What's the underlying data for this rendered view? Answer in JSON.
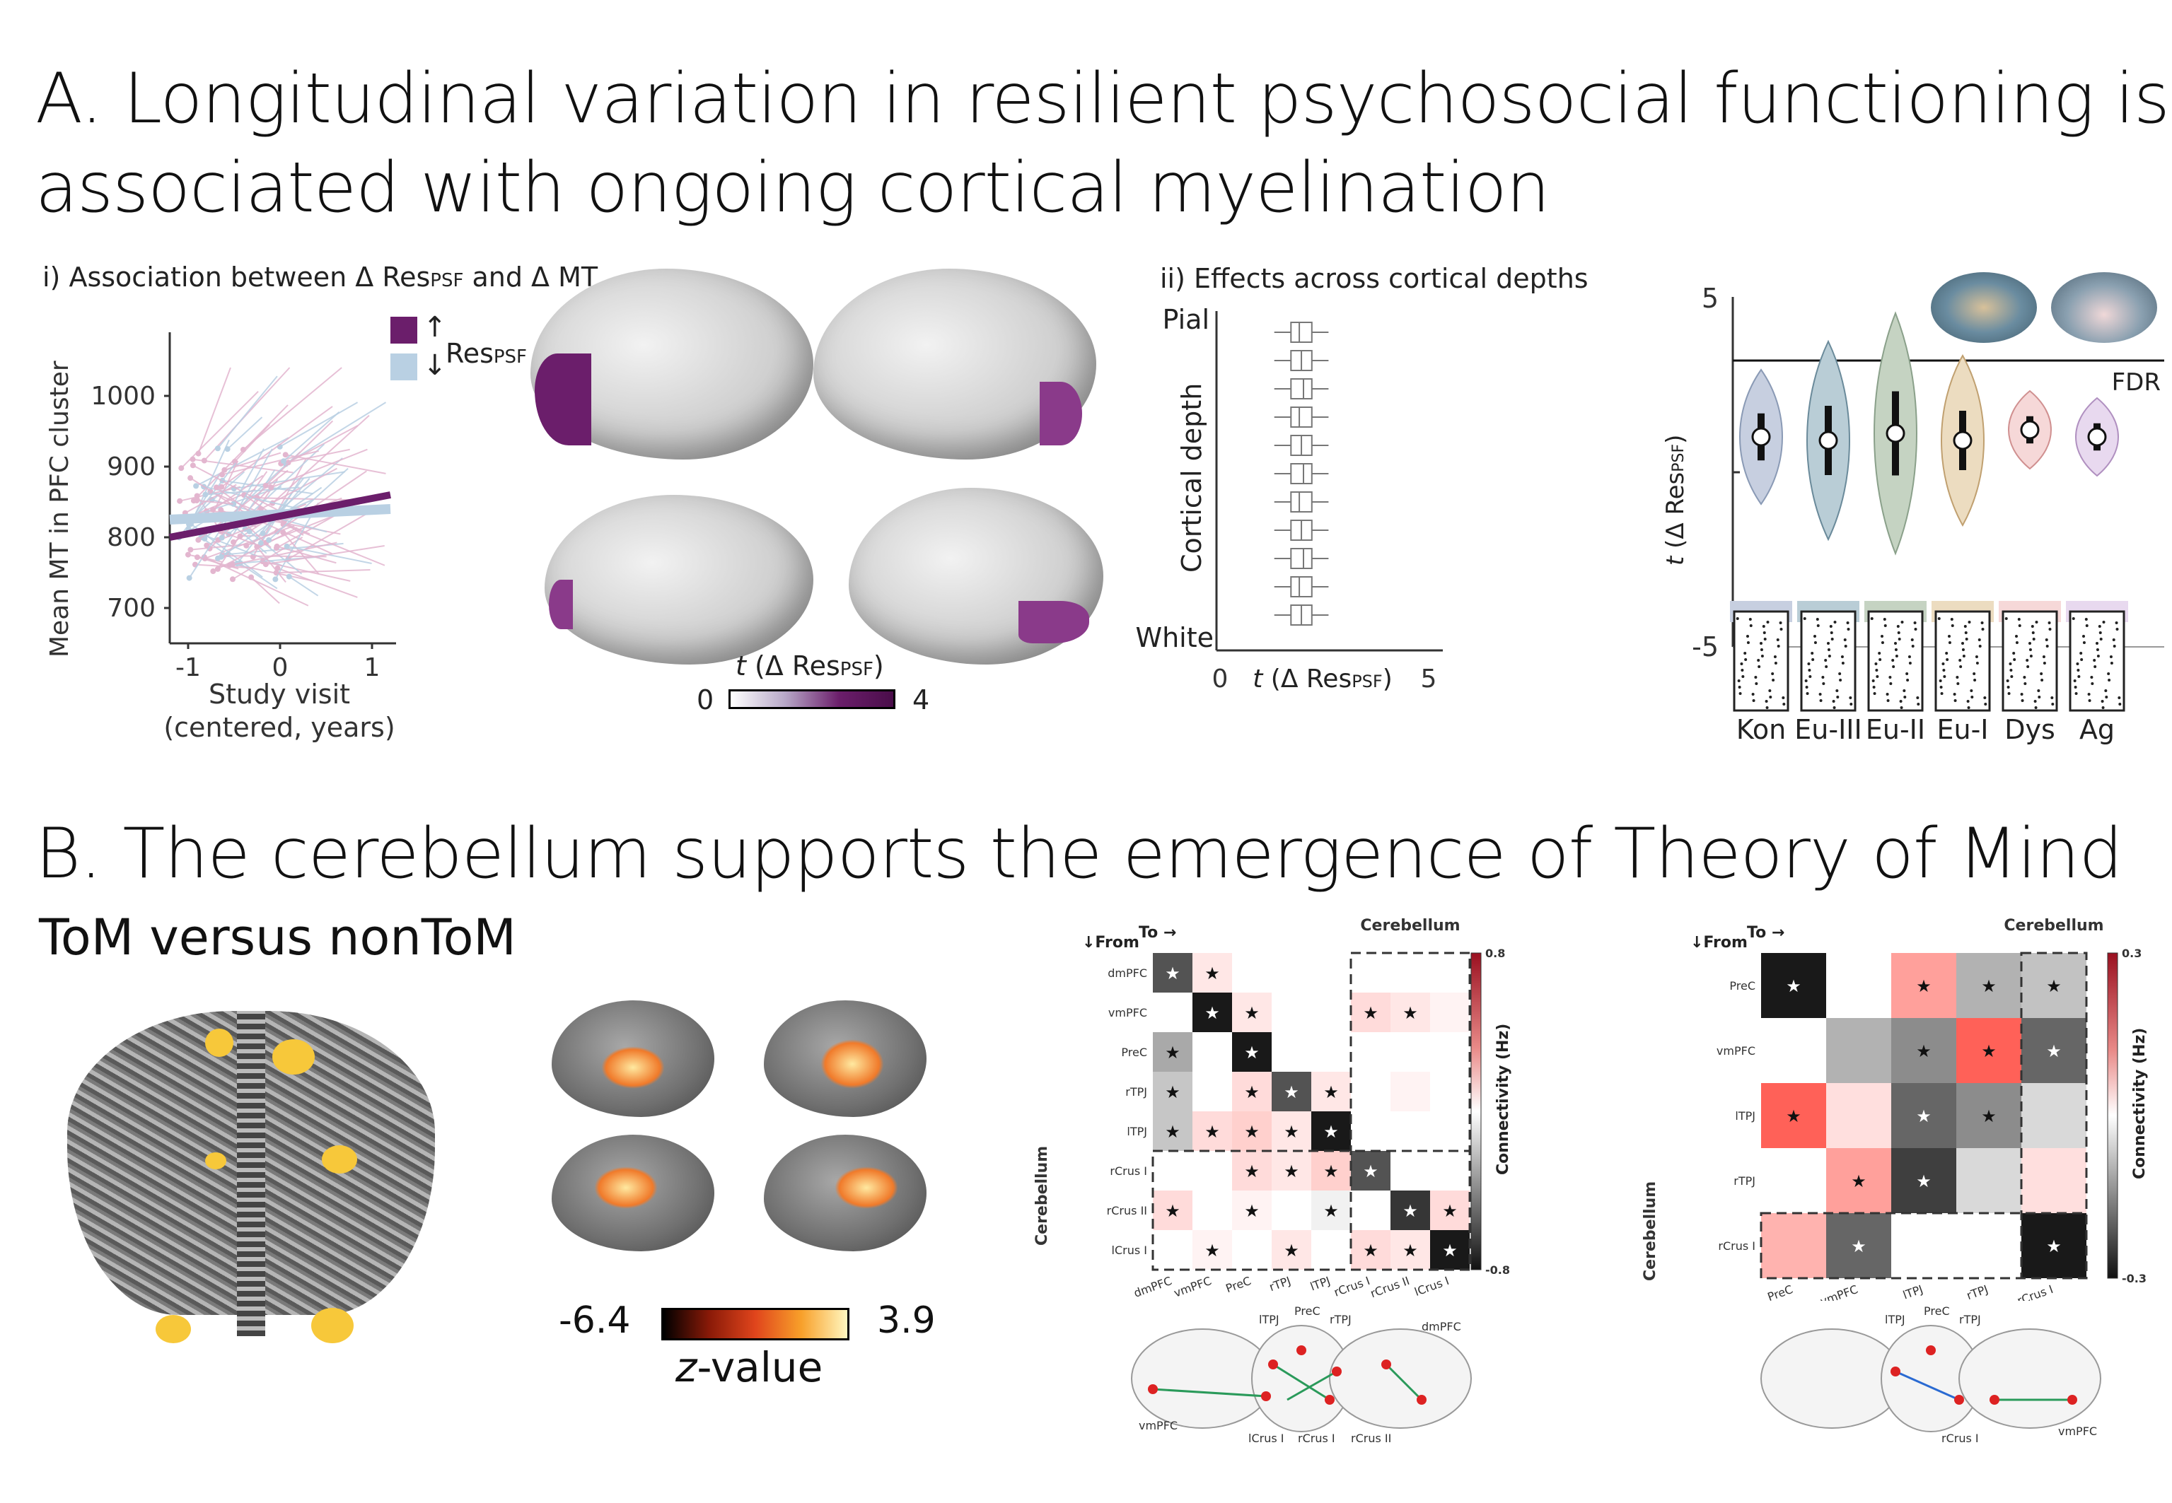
{
  "section_a": {
    "title_line1": "A. Longitudinal variation in resilient psychosocial functioning is",
    "title_line2": "associated with ongoing cortical myelination",
    "panel_i": {
      "title_prefix": "i) Association between Δ Res",
      "title_sub": "PSF",
      "title_suffix": " and Δ MT",
      "ylabel": "Mean MT in PFC cluster",
      "xlabel_line1": "Study visit",
      "xlabel_line2": "(centered, years)",
      "yticks": [
        "1000",
        "900",
        "800",
        "700"
      ],
      "xticks": [
        "-1",
        "0",
        "1"
      ],
      "legend_label": "Res",
      "legend_sub": "PSF",
      "legend_arrow_up": "↑",
      "legend_arrow_down": "↓",
      "colors": {
        "high": "#6b1e6b",
        "low": "#b9d0e3",
        "high_light": "#e3b6cf"
      }
    },
    "brain_colorbar": {
      "label_t": "t",
      "label_rest": " (Δ Res",
      "label_sub": "PSF",
      "label_close": ")",
      "min": "0",
      "max": "4"
    },
    "panel_ii": {
      "title": "ii) Effects across cortical depths",
      "ylabel": "Cortical depth",
      "top_label": "Pial",
      "bottom_label": "White",
      "xticks": [
        "0",
        "5"
      ],
      "xlabel_t": "t",
      "xlabel_rest": " (Δ Res",
      "xlabel_sub": "PSF",
      "xlabel_close": ")"
    },
    "panel_iii": {
      "yticks": [
        "5",
        "-5"
      ],
      "threshold_label": "FDR",
      "ylabel_t": "t",
      "ylabel_rest": " (Δ Res",
      "ylabel_sub": "PSF",
      "ylabel_close": ")",
      "categories": [
        "Kon",
        "Eu-III",
        "Eu-II",
        "Eu-I",
        "Dys",
        "Ag"
      ],
      "colors": [
        "#c7cfe0",
        "#b9cdd6",
        "#c5d3c2",
        "#ecdcc0",
        "#f6d8d8",
        "#e8d9ef"
      ]
    }
  },
  "section_b": {
    "title": "B. The cerebellum supports the emergence of Theory of Mind",
    "subtitle": "ToM versus nonToM",
    "zbar": {
      "min": "-6.4",
      "max": "3.9",
      "label_z": "z",
      "label_rest": "-value"
    },
    "matrix1": {
      "from_label": "↓From",
      "to_label": "To →",
      "group_label": "Cerebellum",
      "row_labels": [
        "dmPFC",
        "vmPFC",
        "PreC",
        "rTPJ",
        "lTPJ",
        "rCrus I",
        "rCrus II",
        "lCrus I"
      ],
      "col_labels": [
        "dmPFC",
        "vmPFC",
        "PreC",
        "rTPJ",
        "lTPJ",
        "rCrus I",
        "rCrus II",
        "lCrus I"
      ],
      "cbar_label": "Connectivity (Hz)",
      "cbar_max": "0.8",
      "cbar_min": "-0.8",
      "star": "★",
      "values": [
        [
          -0.6,
          0.1,
          0,
          0,
          0,
          0,
          0,
          0
        ],
        [
          0,
          -0.8,
          0.1,
          0,
          0,
          0.15,
          0.1,
          0.05
        ],
        [
          -0.3,
          0,
          -0.8,
          0,
          0,
          0,
          0,
          0
        ],
        [
          -0.2,
          0,
          0.15,
          -0.6,
          0.1,
          0,
          0.05,
          0
        ],
        [
          -0.2,
          0.15,
          0.2,
          0.1,
          -0.8,
          0,
          0,
          0
        ],
        [
          0,
          0,
          0.15,
          0.1,
          0.2,
          -0.6,
          0,
          0
        ],
        [
          0.15,
          0,
          0.05,
          0,
          -0.05,
          0,
          -0.7,
          0.15
        ],
        [
          0,
          0.05,
          0,
          0.1,
          0,
          0.15,
          0.1,
          -0.8
        ]
      ],
      "stars": [
        [
          1,
          1,
          0,
          0,
          0,
          0,
          0,
          0
        ],
        [
          0,
          1,
          1,
          0,
          0,
          1,
          1,
          0
        ],
        [
          1,
          0,
          1,
          0,
          0,
          0,
          0,
          0
        ],
        [
          1,
          0,
          1,
          1,
          1,
          0,
          0,
          0
        ],
        [
          1,
          1,
          1,
          1,
          1,
          0,
          0,
          0
        ],
        [
          0,
          0,
          1,
          1,
          1,
          1,
          0,
          0
        ],
        [
          1,
          0,
          1,
          0,
          1,
          0,
          1,
          1
        ],
        [
          0,
          1,
          0,
          1,
          0,
          1,
          1,
          1
        ]
      ],
      "network_labels": [
        "lTPJ",
        "PreC",
        "rTPJ",
        "dmPFC",
        "vmPFC",
        "lCrus I",
        "rCrus I",
        "rCrus II"
      ]
    },
    "matrix2": {
      "from_label": "↓From",
      "to_label": "To →",
      "group_label": "Cerebellum",
      "row_labels": [
        "PreC",
        "vmPFC",
        "lTPJ",
        "rTPJ",
        "rCrus I"
      ],
      "col_labels": [
        "PreC",
        "vmPFC",
        "lTPJ",
        "rTPJ",
        "rCrus I"
      ],
      "cbar_label": "Connectivity (Hz)",
      "cbar_max": "0.3",
      "cbar_min": "-0.3",
      "star": "★",
      "values": [
        [
          -0.3,
          null,
          0.15,
          -0.1,
          -0.08
        ],
        [
          null,
          -0.1,
          -0.15,
          0.25,
          -0.2
        ],
        [
          0.25,
          0.05,
          -0.2,
          -0.15,
          -0.05
        ],
        [
          null,
          0.15,
          -0.25,
          -0.05,
          0.05
        ],
        [
          0.12,
          -0.2,
          null,
          null,
          -0.3
        ]
      ],
      "stars": [
        [
          1,
          0,
          1,
          1,
          1
        ],
        [
          0,
          0,
          1,
          1,
          1
        ],
        [
          1,
          0,
          1,
          1,
          0
        ],
        [
          0,
          1,
          1,
          0,
          0
        ],
        [
          0,
          1,
          0,
          0,
          1
        ]
      ],
      "network_labels": [
        "lTPJ",
        "PreC",
        "rTPJ",
        "rCrus I",
        "vmPFC"
      ]
    }
  }
}
